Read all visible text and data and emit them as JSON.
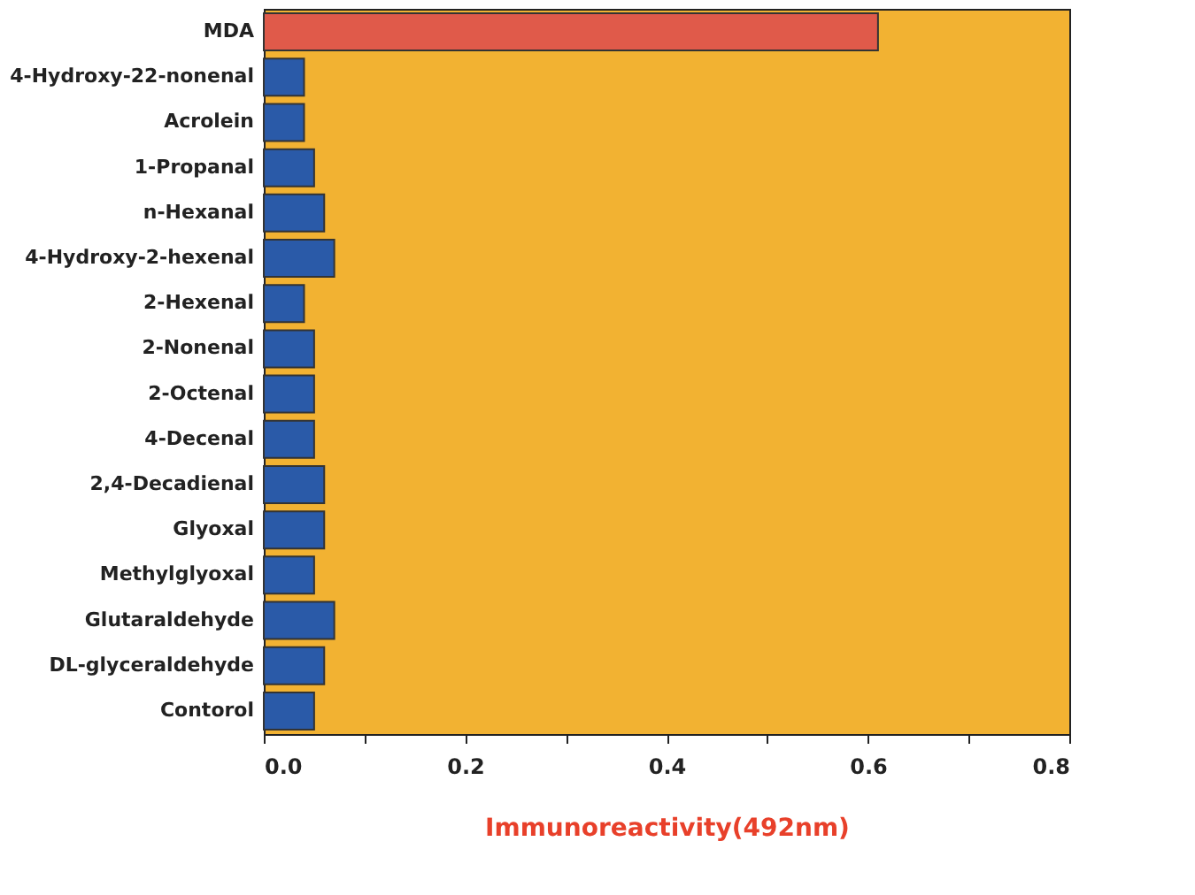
{
  "chart_data": {
    "type": "bar",
    "orientation": "horizontal",
    "xlabel": "Immunoreactivity(492nm)",
    "categories": [
      "MDA",
      "4-Hydroxy-22-nonenal",
      "Acrolein",
      "1-Propanal",
      "n-Hexanal",
      "4-Hydroxy-2-hexenal",
      "2-Hexenal",
      "2-Nonenal",
      "2-Octenal",
      "4-Decenal",
      "2,4-Decadienal",
      "Glyoxal",
      "Methylglyoxal",
      "Glutaraldehyde",
      "DL-glyceraldehyde",
      "Contorol"
    ],
    "values": [
      0.61,
      0.04,
      0.04,
      0.05,
      0.06,
      0.07,
      0.04,
      0.05,
      0.05,
      0.05,
      0.06,
      0.06,
      0.05,
      0.07,
      0.06,
      0.05
    ],
    "colors": [
      "#e05a4a",
      "#2a5aa8",
      "#2a5aa8",
      "#2a5aa8",
      "#2a5aa8",
      "#2a5aa8",
      "#2a5aa8",
      "#2a5aa8",
      "#2a5aa8",
      "#2a5aa8",
      "#2a5aa8",
      "#2a5aa8",
      "#2a5aa8",
      "#2a5aa8",
      "#2a5aa8",
      "#2a5aa8"
    ],
    "xlim": [
      0,
      0.8
    ],
    "xticks": [
      {
        "value": 0,
        "label": "0.0"
      },
      {
        "value": 0.1,
        "label": null
      },
      {
        "value": 0.2,
        "label": "0.2"
      },
      {
        "value": 0.3,
        "label": null
      },
      {
        "value": 0.4,
        "label": "0.4"
      },
      {
        "value": 0.5,
        "label": null
      },
      {
        "value": 0.6,
        "label": "0.6"
      },
      {
        "value": 0.7,
        "label": null
      },
      {
        "value": 0.8,
        "label": "0.8"
      }
    ],
    "grid": false
  }
}
